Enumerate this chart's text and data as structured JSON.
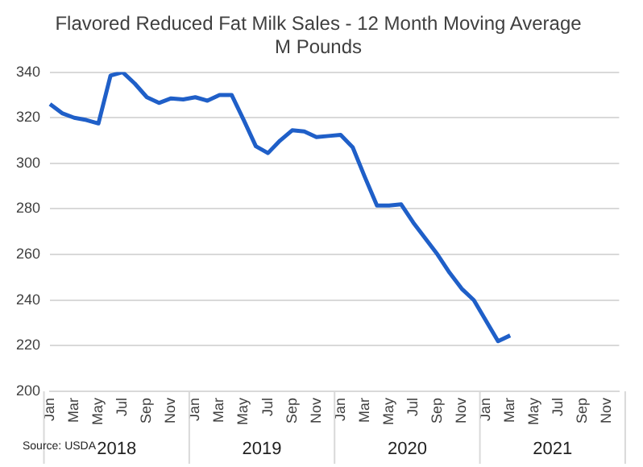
{
  "chart_data": {
    "type": "line",
    "title": [
      "Flavored Reduced Fat Milk Sales - 12 Month Moving Average",
      "M Pounds"
    ],
    "categories": [
      "Jan",
      null,
      "Mar",
      null,
      "May",
      null,
      "Jul",
      null,
      "Sep",
      null,
      "Nov",
      null,
      "Jan",
      null,
      "Mar",
      null,
      "May",
      null,
      "Jul",
      null,
      "Sep",
      null,
      "Nov",
      null,
      "Jan",
      null,
      "Mar",
      null,
      "May",
      null,
      "Jul",
      null,
      "Sep",
      null,
      "Nov",
      null,
      "Jan",
      null,
      "Mar",
      null,
      "May",
      null,
      "Jul",
      null,
      "Sep",
      null,
      "Nov",
      null
    ],
    "series": [
      {
        "color": "#1f5fc8",
        "values": [
          326,
          322,
          320,
          319,
          317.5,
          338.5,
          340,
          335,
          329,
          326.5,
          328.5,
          328,
          329,
          327.5,
          330,
          330,
          319,
          307.5,
          304.5,
          310,
          314.5,
          314,
          311.5,
          312,
          312.5,
          307,
          294,
          281.5,
          281.5,
          282,
          274,
          267,
          260,
          252,
          245,
          240,
          231,
          222,
          224.5,
          null,
          null,
          null,
          null,
          null,
          null,
          null,
          null,
          null
        ]
      }
    ],
    "ylim": [
      200,
      340
    ],
    "yticks": [
      200,
      220,
      240,
      260,
      280,
      300,
      320,
      340
    ],
    "grid": "y",
    "legend": false,
    "line_style": "solid",
    "marker": "none",
    "annotations": [
      "2018",
      "2019",
      "2020",
      "2021",
      "Source: USDA"
    ]
  }
}
